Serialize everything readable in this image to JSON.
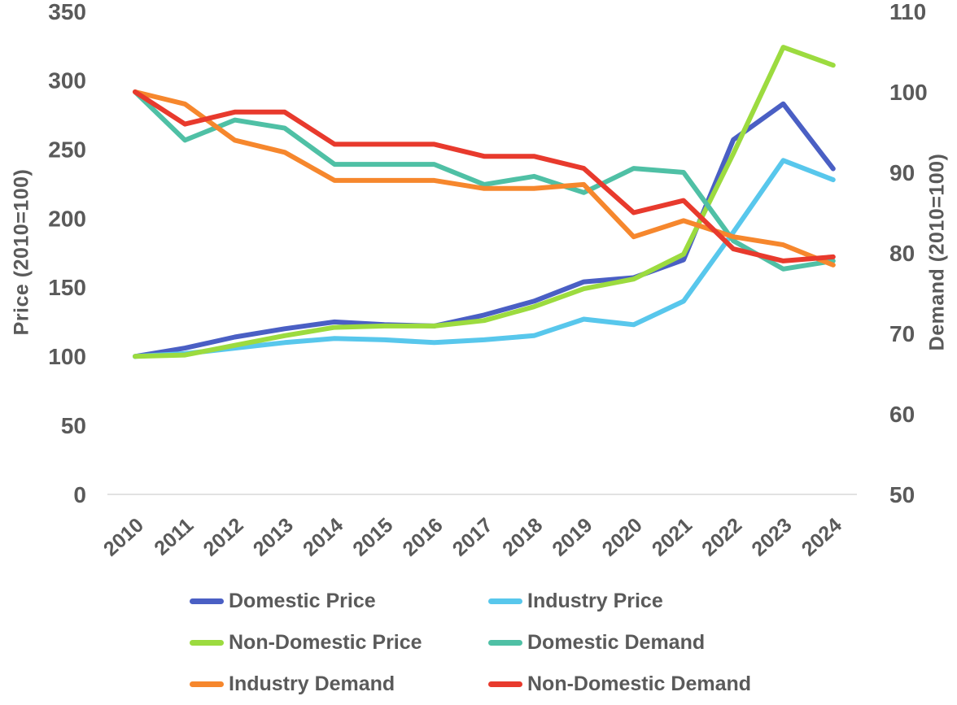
{
  "chart_data": {
    "type": "line",
    "categories": [
      "2010",
      "2011",
      "2012",
      "2013",
      "2014",
      "2015",
      "2016",
      "2017",
      "2018",
      "2019",
      "2020",
      "2021",
      "2022",
      "2023",
      "2024"
    ],
    "series": [
      {
        "name": "Domestic Price",
        "axis": "left",
        "color": "#4A5FC4",
        "values": [
          100,
          106,
          114,
          120,
          125,
          123,
          122,
          130,
          140,
          154,
          157,
          170,
          257,
          283,
          236
        ]
      },
      {
        "name": "Industry Price",
        "axis": "left",
        "color": "#58C7EC",
        "values": [
          100,
          102,
          106,
          110,
          113,
          112,
          110,
          112,
          115,
          127,
          123,
          140,
          190,
          242,
          228
        ]
      },
      {
        "name": "Non-Domestic Price",
        "axis": "left",
        "color": "#9CDB3F",
        "values": [
          100,
          101,
          108,
          115,
          121,
          122,
          122,
          126,
          136,
          149,
          156,
          174,
          247,
          324,
          311
        ]
      },
      {
        "name": "Domestic Demand",
        "axis": "right",
        "color": "#4FC0A5",
        "values": [
          100,
          94,
          96.5,
          95.5,
          91,
          91,
          91,
          88.5,
          89.5,
          87.5,
          90.5,
          90,
          81.5,
          78,
          79
        ]
      },
      {
        "name": "Industry Demand",
        "axis": "right",
        "color": "#F6872D",
        "values": [
          100,
          98.5,
          94,
          92.5,
          89,
          89,
          89,
          88,
          88,
          88.5,
          82,
          84,
          82,
          81,
          78.5
        ]
      },
      {
        "name": "Non-Domestic Demand",
        "axis": "right",
        "color": "#E83A2D",
        "values": [
          100,
          96,
          97.5,
          97.5,
          93.5,
          93.5,
          93.5,
          92,
          92,
          90.5,
          85,
          86.5,
          80.5,
          79,
          79.5
        ]
      }
    ],
    "left_axis": {
      "label": "Price (2010=100)",
      "min": 0,
      "max": 350,
      "ticks": [
        350,
        300,
        250,
        200,
        150,
        100,
        50,
        0
      ]
    },
    "right_axis": {
      "label": "Demand (2010=100)",
      "min": 50,
      "max": 110,
      "ticks": [
        110,
        100,
        90,
        80,
        70,
        60,
        50
      ]
    },
    "title": "",
    "grid": "bottom-axis-line-only",
    "legend_position": "bottom",
    "legend_columns": 2
  },
  "styles": {
    "text_color": "#5A5A5A",
    "grid_color": "#D9D9D9",
    "background": "#FFFFFF",
    "line_width": 6
  }
}
